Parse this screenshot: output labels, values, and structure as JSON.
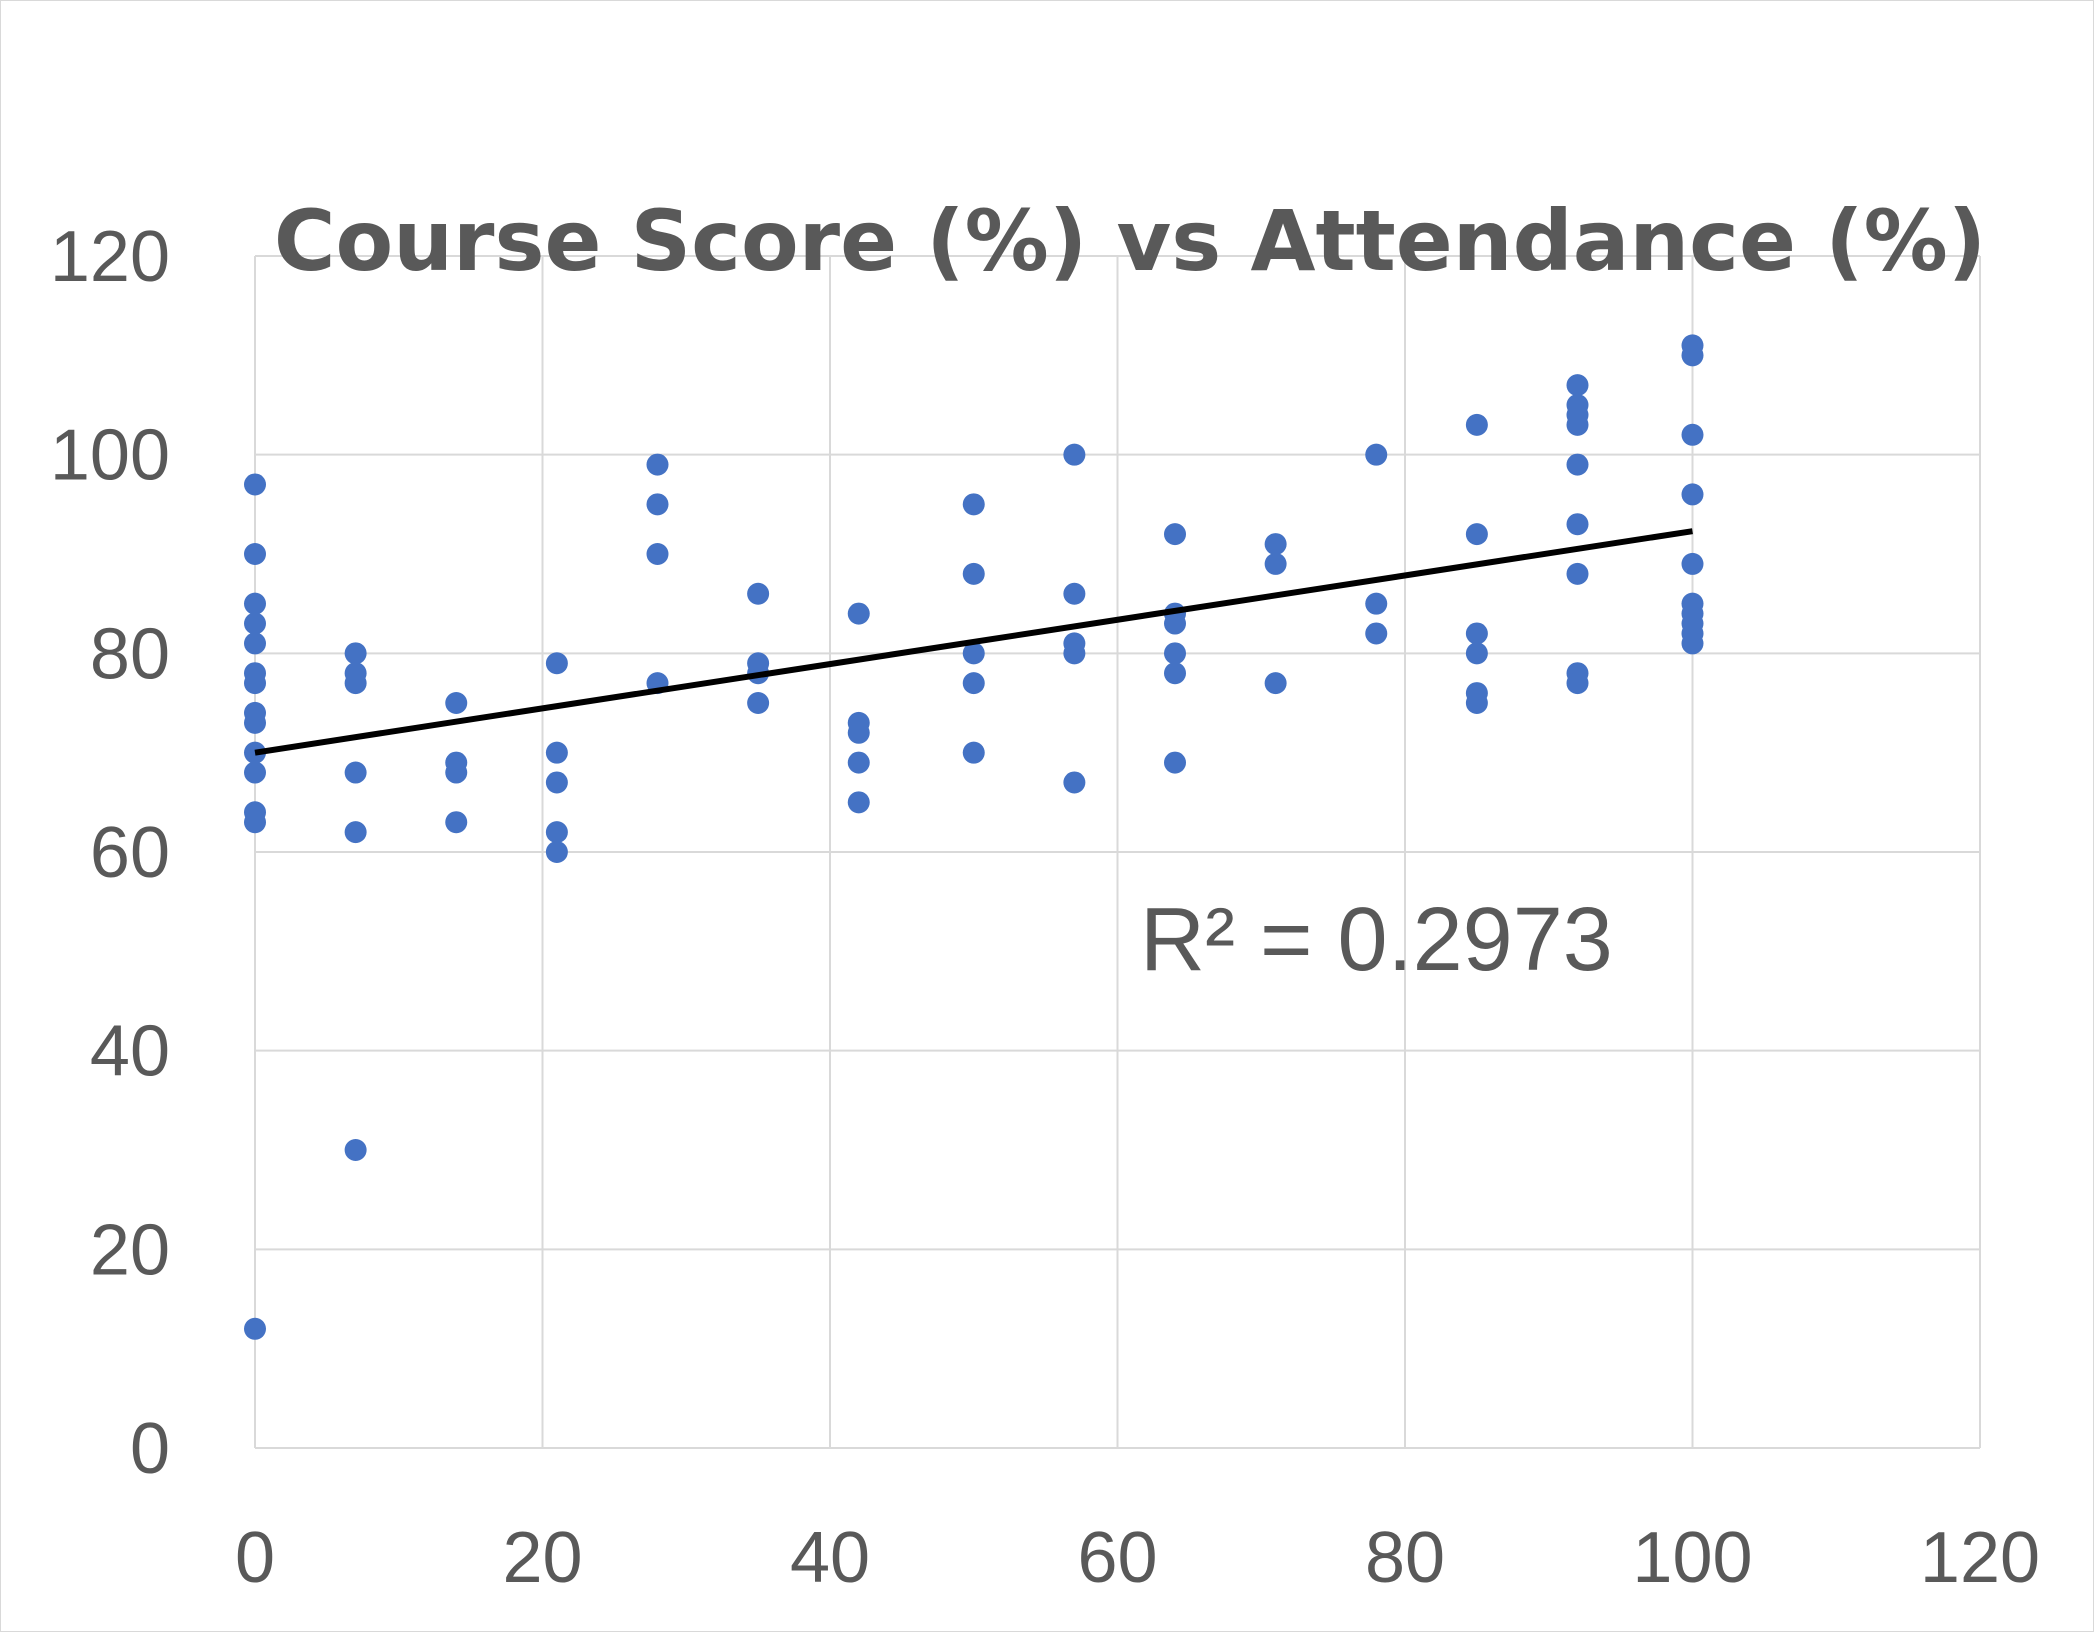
{
  "chart_data": {
    "type": "scatter",
    "title": "Course Score (%) vs Attendance (%)",
    "xlabel": "",
    "ylabel": "",
    "xlim": [
      0,
      120
    ],
    "ylim": [
      0,
      120
    ],
    "x_ticks": [
      "0",
      "20",
      "40",
      "60",
      "80",
      "100",
      "120"
    ],
    "y_ticks": [
      "0",
      "20",
      "40",
      "60",
      "80",
      "100",
      "120"
    ],
    "grid": true,
    "legend": "none",
    "colors": {
      "points": "#4472c4",
      "trendline": "#000000",
      "grid": "#d9d9d9",
      "text": "#595959"
    },
    "trendline": {
      "type": "linear",
      "x_start": 0,
      "y_start": 70,
      "x_end": 100,
      "y_end": 92.3
    },
    "r_squared_label": "R² = 0.2973",
    "points": [
      {
        "x": 0,
        "y": 97
      },
      {
        "x": 0,
        "y": 90
      },
      {
        "x": 0,
        "y": 85
      },
      {
        "x": 0,
        "y": 83
      },
      {
        "x": 0,
        "y": 81
      },
      {
        "x": 0,
        "y": 78
      },
      {
        "x": 0,
        "y": 77
      },
      {
        "x": 0,
        "y": 74
      },
      {
        "x": 0,
        "y": 73
      },
      {
        "x": 0,
        "y": 70
      },
      {
        "x": 0,
        "y": 68
      },
      {
        "x": 0,
        "y": 64
      },
      {
        "x": 0,
        "y": 63
      },
      {
        "x": 0,
        "y": 12
      },
      {
        "x": 7,
        "y": 80
      },
      {
        "x": 7,
        "y": 78
      },
      {
        "x": 7,
        "y": 77
      },
      {
        "x": 7,
        "y": 68
      },
      {
        "x": 7,
        "y": 62
      },
      {
        "x": 7,
        "y": 30
      },
      {
        "x": 14,
        "y": 75
      },
      {
        "x": 14,
        "y": 69
      },
      {
        "x": 14,
        "y": 68
      },
      {
        "x": 14,
        "y": 63
      },
      {
        "x": 21,
        "y": 79
      },
      {
        "x": 21,
        "y": 70
      },
      {
        "x": 21,
        "y": 67
      },
      {
        "x": 21,
        "y": 62
      },
      {
        "x": 21,
        "y": 60
      },
      {
        "x": 28,
        "y": 99
      },
      {
        "x": 28,
        "y": 95
      },
      {
        "x": 28,
        "y": 90
      },
      {
        "x": 28,
        "y": 77
      },
      {
        "x": 35,
        "y": 86
      },
      {
        "x": 35,
        "y": 79
      },
      {
        "x": 35,
        "y": 78
      },
      {
        "x": 35,
        "y": 75
      },
      {
        "x": 42,
        "y": 84
      },
      {
        "x": 42,
        "y": 73
      },
      {
        "x": 42,
        "y": 72
      },
      {
        "x": 42,
        "y": 69
      },
      {
        "x": 42,
        "y": 65
      },
      {
        "x": 50,
        "y": 95
      },
      {
        "x": 50,
        "y": 88
      },
      {
        "x": 50,
        "y": 80
      },
      {
        "x": 50,
        "y": 77
      },
      {
        "x": 50,
        "y": 70
      },
      {
        "x": 57,
        "y": 100
      },
      {
        "x": 57,
        "y": 86
      },
      {
        "x": 57,
        "y": 81
      },
      {
        "x": 57,
        "y": 80
      },
      {
        "x": 57,
        "y": 67
      },
      {
        "x": 64,
        "y": 92
      },
      {
        "x": 64,
        "y": 84
      },
      {
        "x": 64,
        "y": 83
      },
      {
        "x": 64,
        "y": 80
      },
      {
        "x": 64,
        "y": 78
      },
      {
        "x": 64,
        "y": 69
      },
      {
        "x": 71,
        "y": 91
      },
      {
        "x": 71,
        "y": 89
      },
      {
        "x": 71,
        "y": 77
      },
      {
        "x": 78,
        "y": 100
      },
      {
        "x": 78,
        "y": 85
      },
      {
        "x": 78,
        "y": 82
      },
      {
        "x": 85,
        "y": 103
      },
      {
        "x": 85,
        "y": 92
      },
      {
        "x": 85,
        "y": 82
      },
      {
        "x": 85,
        "y": 80
      },
      {
        "x": 85,
        "y": 76
      },
      {
        "x": 85,
        "y": 75
      },
      {
        "x": 92,
        "y": 107
      },
      {
        "x": 92,
        "y": 105
      },
      {
        "x": 92,
        "y": 104
      },
      {
        "x": 92,
        "y": 103
      },
      {
        "x": 92,
        "y": 99
      },
      {
        "x": 92,
        "y": 93
      },
      {
        "x": 92,
        "y": 88
      },
      {
        "x": 92,
        "y": 78
      },
      {
        "x": 92,
        "y": 77
      },
      {
        "x": 100,
        "y": 111
      },
      {
        "x": 100,
        "y": 110
      },
      {
        "x": 100,
        "y": 102
      },
      {
        "x": 100,
        "y": 96
      },
      {
        "x": 100,
        "y": 89
      },
      {
        "x": 100,
        "y": 85
      },
      {
        "x": 100,
        "y": 84
      },
      {
        "x": 100,
        "y": 83
      },
      {
        "x": 100,
        "y": 82
      },
      {
        "x": 100,
        "y": 81
      }
    ]
  }
}
